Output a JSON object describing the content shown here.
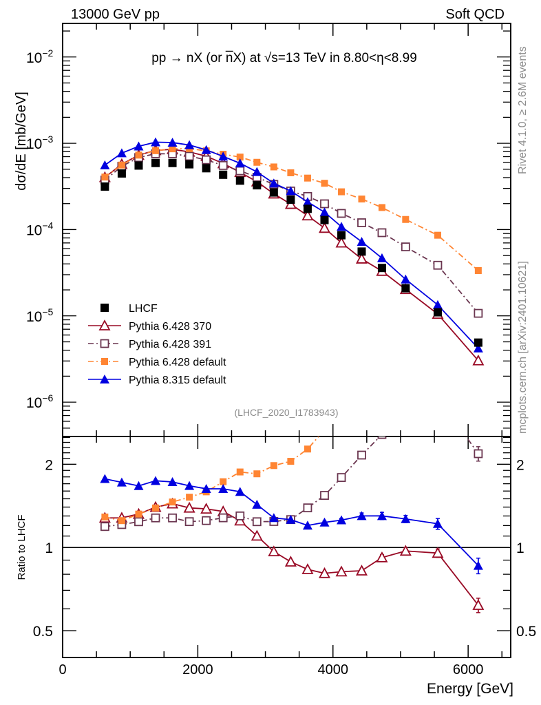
{
  "header": {
    "left": "13000 GeV pp",
    "right": "Soft QCD"
  },
  "side_labels": {
    "rivet": "Rivet 4.1.0, ≥ 2.6M events",
    "mcplots": "mcplots.cern.ch [arXiv:2401.10621]"
  },
  "chart_data": {
    "type": "scatter",
    "title": "pp → nX (or n̅X) at √s=13 TeV in 8.80<η<8.99",
    "analysis_id": "(LHCF_2020_I1783943)",
    "xlabel": "Energy [GeV]",
    "ylabel": "dσ/dE [mb/GeV]",
    "ratio_ylabel": "Ratio to LHCF",
    "xlim": [
      0,
      6630
    ],
    "ylim": [
      4e-07,
      0.0245
    ],
    "yscale": "log",
    "ratio_ylim": [
      0.4,
      2.52
    ],
    "ratio_yscale": "log",
    "x_ticks": [
      0,
      2000,
      4000,
      6000
    ],
    "x_tick_labels": [
      "0",
      "2000",
      "4000",
      "6000"
    ],
    "y_ticks": [
      1e-06,
      1e-05,
      0.0001,
      0.001,
      0.01
    ],
    "y_tick_labels": [
      {
        "base": "10",
        "exp": "−6"
      },
      {
        "base": "10",
        "exp": "−5"
      },
      {
        "base": "10",
        "exp": "−4"
      },
      {
        "base": "10",
        "exp": "−3"
      },
      {
        "base": "10",
        "exp": "−2"
      }
    ],
    "ratio_ticks": [
      0.5,
      1,
      2
    ],
    "ratio_tick_labels": [
      "0.5",
      "1",
      "2"
    ],
    "legend_position": "lower-left",
    "x": [
      625,
      875,
      1125,
      1375,
      1625,
      1875,
      2125,
      2375,
      2625,
      2875,
      3125,
      3375,
      3625,
      3875,
      4125,
      4425,
      4725,
      5075,
      5550,
      6150
    ],
    "data": {
      "name": "LHCF",
      "color": "#000000",
      "marker": "filled-square",
      "values": [
        0.000315,
        0.000447,
        0.000552,
        0.000591,
        0.000591,
        0.000571,
        0.000514,
        0.000432,
        0.000369,
        0.000326,
        0.000269,
        0.000222,
        0.000174,
        0.000129,
        8.6e-05,
        5.56e-05,
        3.59e-05,
        2.09e-05,
        1.1e-05,
        4.9e-06
      ]
    },
    "series": [
      {
        "name": "Pythia 6.428 370",
        "color": "#990a25",
        "marker": "open-triangle",
        "line": "solid",
        "values": [
          0.000403,
          0.000572,
          0.000729,
          0.000827,
          0.000851,
          0.000794,
          0.000709,
          0.000583,
          0.000461,
          0.000359,
          0.00026,
          0.000197,
          0.000145,
          0.000104,
          7.03e-05,
          4.58e-05,
          3.3e-05,
          2.03e-05,
          1.05e-05,
          3.03e-06
        ],
        "ratio_err": [
          0,
          0,
          0,
          0,
          0,
          0,
          0,
          0,
          0,
          0,
          0,
          0,
          0,
          0.01,
          0.015,
          0.02,
          0.025,
          0.03,
          0.035,
          0.06
        ]
      },
      {
        "name": "Pythia 6.428 391",
        "color": "#6b3650",
        "marker": "open-square",
        "line": "dashdot",
        "values": [
          0.000375,
          0.000541,
          0.000684,
          0.000756,
          0.000756,
          0.000708,
          0.000643,
          0.000553,
          0.00048,
          0.000404,
          0.000334,
          0.00028,
          0.000242,
          0.000199,
          0.000154,
          0.00012,
          9.2e-05,
          6.3e-05,
          3.86e-05,
          1.07e-05
        ],
        "ratio_err": [
          0,
          0,
          0,
          0,
          0,
          0,
          0,
          0,
          0,
          0,
          0,
          0,
          0,
          0,
          0,
          0,
          0,
          0,
          0,
          0.06
        ]
      },
      {
        "name": "Pythia 6.428 default",
        "color": "#ff8533",
        "marker": "filled-square-small",
        "line": "dashdot",
        "values": [
          0.000406,
          0.000559,
          0.000729,
          0.000821,
          0.000863,
          0.000868,
          0.000817,
          0.000747,
          0.000692,
          0.000602,
          0.000532,
          0.000455,
          0.000395,
          0.000344,
          0.000274,
          0.000226,
          0.00018,
          0.000131,
          8.6e-05,
          3.35e-05
        ],
        "ratio_err": [
          0,
          0,
          0,
          0,
          0,
          0,
          0,
          0,
          0,
          0,
          0,
          0,
          0,
          0,
          0,
          0,
          0,
          0,
          0,
          0
        ]
      },
      {
        "name": "Pythia 8.315 default",
        "color": "#0000e0",
        "marker": "filled-triangle",
        "line": "solid",
        "values": [
          0.000558,
          0.000769,
          0.000922,
          0.00103,
          0.00102,
          0.000954,
          0.000838,
          0.000704,
          0.000587,
          0.000466,
          0.000344,
          0.00028,
          0.000209,
          0.000159,
          0.000108,
          7.23e-05,
          4.67e-05,
          2.65e-05,
          1.34e-05,
          4.21e-06
        ],
        "ratio_err": [
          0,
          0,
          0,
          0,
          0,
          0,
          0,
          0,
          0,
          0,
          0,
          0,
          0,
          0.01,
          0.015,
          0.025,
          0.03,
          0.03,
          0.045,
          0.065
        ]
      }
    ]
  }
}
